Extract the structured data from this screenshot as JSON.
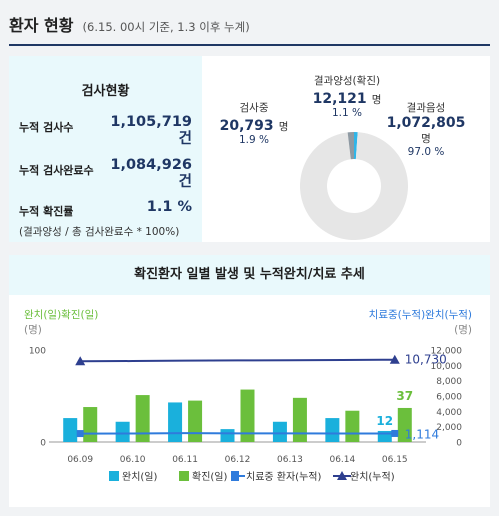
{
  "header": {
    "title": "환자 현황",
    "subtitle": "(6.15. 00시 기준, 1.3 이후 누계)"
  },
  "stats": {
    "heading": "검사현황",
    "rows": [
      {
        "label": "누적 검사수",
        "value": "1,105,719",
        "unit": "건"
      },
      {
        "label": "누적 검사완료수",
        "value": "1,084,926",
        "unit": "건"
      },
      {
        "label": "누적 확진률",
        "value": "1.1 %"
      }
    ],
    "note": "(결과양성 / 총 검사완료수 * 100%)"
  },
  "donut": {
    "segments": [
      {
        "name": "결과양성(확진)",
        "value": 12121,
        "value_text": "12,121",
        "unit": "명",
        "pct": "1.1 %",
        "color": "#2fb5e8"
      },
      {
        "name": "결과음성",
        "value": 1072805,
        "value_text": "1,072,805",
        "unit": "명",
        "pct": "97.0 %",
        "color": "#e6e6e6"
      },
      {
        "name": "검사중",
        "value": 20793,
        "value_text": "20,793",
        "unit": "명",
        "pct": "1.9 %",
        "color": "#8f9aa3"
      }
    ]
  },
  "chart_title": "확진환자 일별 발생 및 누적완치/치료 추세",
  "chart_data": {
    "type": "bar",
    "categories": [
      "06.09",
      "06.10",
      "06.11",
      "06.12",
      "06.13",
      "06.14",
      "06.15"
    ],
    "ylabel_left": "완치(일)확진(일)",
    "ylabel_left_unit": "(명)",
    "ylabel_right": "치료중(누적)완치(누적)",
    "ylabel_right_unit": "(명)",
    "ylim_left": [
      0,
      100
    ],
    "left_ticks": [
      "100",
      "0"
    ],
    "ylim_right": [
      0,
      12000
    ],
    "right_ticks": [
      "12,000",
      "10,000",
      "8,000",
      "6,000",
      "4,000",
      "2,000",
      "0"
    ],
    "series": [
      {
        "name": "완치(일)",
        "kind": "bar",
        "axis": "left",
        "color": "#1ab0dc",
        "values": [
          26,
          22,
          43,
          14,
          22,
          26,
          12
        ]
      },
      {
        "name": "확진(일)",
        "kind": "bar",
        "axis": "left",
        "color": "#6bbf3c",
        "values": [
          38,
          51,
          45,
          57,
          48,
          34,
          37
        ]
      },
      {
        "name": "치료중 환자(누적)",
        "kind": "line",
        "axis": "right",
        "color": "#2f7bdc",
        "values": [
          1100,
          1110,
          1150,
          1130,
          1120,
          1110,
          1114
        ]
      },
      {
        "name": "완치(누적)",
        "kind": "line",
        "axis": "right",
        "color": "#2e3f8f",
        "values": [
          10530,
          10560,
          10610,
          10640,
          10670,
          10700,
          10730
        ]
      }
    ],
    "data_labels": [
      {
        "text": "37",
        "color": "#6bbf3c"
      },
      {
        "text": "12",
        "color": "#1ab0dc"
      },
      {
        "text": "10,730",
        "color": "#2e3f8f"
      },
      {
        "text": "1,114",
        "color": "#2f7bdc"
      }
    ],
    "legend": [
      "완치(일)",
      "확진(일)",
      "치료중 환자(누적)",
      "완치(누적)"
    ]
  }
}
